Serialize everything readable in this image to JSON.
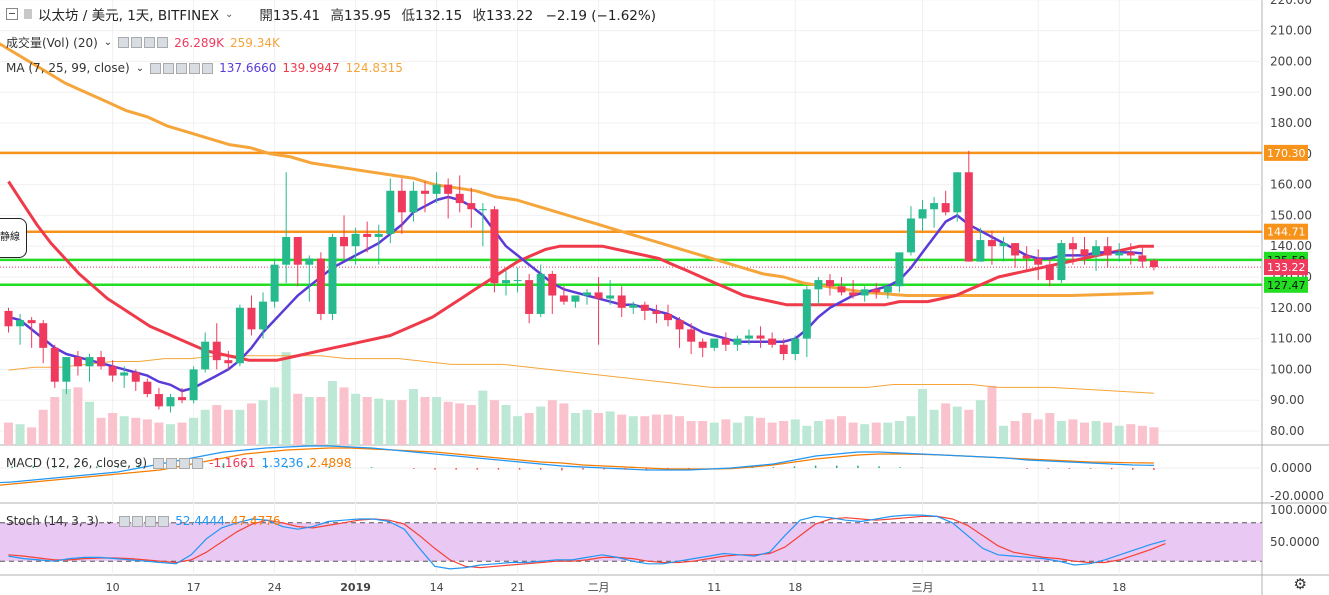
{
  "header": {
    "symbol": "以太坊 / 美元, 1天, BITFINEX",
    "open_label": "開",
    "open": "135.41",
    "high_label": "高",
    "high": "135.95",
    "low_label": "低",
    "low": "132.15",
    "close_label": "收",
    "close": "133.22",
    "change": "−2.19 (−1.62%)"
  },
  "volume_legend": {
    "name": "成交量(Vol) (20)",
    "v1": "26.289K",
    "v2": "259.34K"
  },
  "ma_legend": {
    "name": "MA (7, 25, 99, close)",
    "v1": "137.6660",
    "v2": "139.9947",
    "v3": "124.8315"
  },
  "macd_legend": {
    "name": "MACD (12, 26, close, 9)",
    "v1": "-1.1661",
    "v2": "1.3236",
    "v3": "2.4898"
  },
  "stoch_legend": {
    "name": "Stoch (14, 3, 3)",
    "v1": "52.4444",
    "v2": "47.4776"
  },
  "left_tag": "静線",
  "colors": {
    "up": "#26b98d",
    "down": "#ef3a5d",
    "ma7": "#5b3bd8",
    "ma25": "#ef3a4a",
    "ma99": "#f6a53b",
    "orange_line": "#f7931a",
    "green_line": "#22dd22",
    "stoch_fill": "#eac8f4"
  },
  "chart_data": {
    "type": "candlestick",
    "y_ticks": [
      80,
      90,
      100,
      110,
      120,
      130,
      140,
      150,
      160,
      170,
      180,
      190,
      200,
      210,
      220
    ],
    "y_tick_labels": [
      "80.00",
      "90.00",
      "100.00",
      "110.00",
      "120.00",
      "130.00",
      "140.00",
      "150.00",
      "160.00",
      "170.00",
      "180.00",
      "190.00",
      "200.00",
      "210.00",
      "220.00"
    ],
    "x_ticks": [
      {
        "day": 10,
        "label": "10"
      },
      {
        "day": 17,
        "label": "17"
      },
      {
        "day": 24,
        "label": "24"
      },
      {
        "day": 31,
        "label": "2019"
      },
      {
        "day": 38,
        "label": "14"
      },
      {
        "day": 45,
        "label": "21"
      },
      {
        "day": 52,
        "label": "二月"
      },
      {
        "day": 62,
        "label": "11"
      },
      {
        "day": 69,
        "label": "18"
      },
      {
        "day": 80,
        "label": "三月"
      },
      {
        "day": 90,
        "label": "11"
      },
      {
        "day": 97,
        "label": "18"
      }
    ],
    "horizontal_lines": [
      {
        "value": 170.3,
        "label": "170.30",
        "color": "orange"
      },
      {
        "value": 144.71,
        "label": "144.71",
        "color": "orange"
      },
      {
        "value": 135.58,
        "label": "135.58",
        "color": "green"
      },
      {
        "value": 127.47,
        "label": "127.47",
        "color": "green"
      }
    ],
    "last_price": {
      "value": 133.22,
      "label": "133.22"
    },
    "candles": [
      [
        119,
        120,
        112,
        114
      ],
      [
        114,
        118,
        108,
        116
      ],
      [
        116,
        117,
        107,
        115
      ],
      [
        115,
        116,
        102,
        107
      ],
      [
        107,
        108,
        94,
        96
      ],
      [
        96,
        104,
        92,
        104
      ],
      [
        104,
        106,
        98,
        101
      ],
      [
        101,
        105,
        96,
        104
      ],
      [
        104,
        106,
        100,
        101
      ],
      [
        101,
        103,
        96,
        98
      ],
      [
        98,
        101,
        94,
        99
      ],
      [
        99,
        100,
        93,
        96
      ],
      [
        96,
        97,
        91,
        92
      ],
      [
        92,
        94,
        87,
        88
      ],
      [
        88,
        92,
        86,
        91
      ],
      [
        91,
        94,
        89,
        90
      ],
      [
        90,
        101,
        89,
        100
      ],
      [
        100,
        112,
        99,
        109
      ],
      [
        109,
        115,
        100,
        103
      ],
      [
        103,
        106,
        100,
        102
      ],
      [
        102,
        121,
        101,
        120
      ],
      [
        120,
        124,
        111,
        113
      ],
      [
        113,
        125,
        110,
        122
      ],
      [
        122,
        136,
        120,
        134
      ],
      [
        134,
        164,
        128,
        143
      ],
      [
        143,
        143,
        127,
        134
      ],
      [
        134,
        137,
        122,
        136
      ],
      [
        136,
        138,
        116,
        118
      ],
      [
        118,
        144,
        116,
        143
      ],
      [
        143,
        150,
        136,
        140
      ],
      [
        140,
        146,
        134,
        144
      ],
      [
        144,
        148,
        138,
        143
      ],
      [
        143,
        147,
        134,
        144
      ],
      [
        144,
        162,
        141,
        158
      ],
      [
        158,
        162,
        144,
        151
      ],
      [
        151,
        161,
        148,
        158
      ],
      [
        158,
        161,
        151,
        157
      ],
      [
        157,
        164,
        154,
        160
      ],
      [
        160,
        162,
        149,
        157
      ],
      [
        157,
        163,
        151,
        154
      ],
      [
        154,
        159,
        146,
        152
      ],
      [
        152,
        154,
        140,
        152
      ],
      [
        152,
        153,
        125,
        128
      ],
      [
        128,
        132,
        124,
        129
      ],
      [
        129,
        133,
        125,
        129
      ],
      [
        129,
        131,
        115,
        118
      ],
      [
        118,
        134,
        117,
        131
      ],
      [
        131,
        132,
        118,
        124
      ],
      [
        124,
        127,
        121,
        122
      ],
      [
        122,
        124,
        120,
        124
      ],
      [
        124,
        126,
        121,
        125
      ],
      [
        125,
        130,
        108,
        123
      ],
      [
        123,
        129,
        121,
        124
      ],
      [
        124,
        127,
        117,
        120
      ],
      [
        120,
        122,
        118,
        121
      ],
      [
        121,
        122,
        116,
        119
      ],
      [
        119,
        121,
        115,
        118
      ],
      [
        118,
        121,
        114,
        116
      ],
      [
        116,
        117,
        107,
        113
      ],
      [
        113,
        115,
        105,
        109
      ],
      [
        109,
        110,
        104,
        107
      ],
      [
        107,
        110,
        106,
        110
      ],
      [
        110,
        112,
        106,
        108
      ],
      [
        108,
        111,
        106,
        110
      ],
      [
        110,
        113,
        108,
        111
      ],
      [
        111,
        114,
        107,
        110
      ],
      [
        110,
        112,
        107,
        108
      ],
      [
        108,
        110,
        103,
        105
      ],
      [
        105,
        111,
        103,
        110
      ],
      [
        110,
        127,
        104,
        126
      ],
      [
        126,
        130,
        121,
        129
      ],
      [
        129,
        131,
        124,
        127
      ],
      [
        127,
        130,
        124,
        125
      ],
      [
        125,
        129,
        123,
        124
      ],
      [
        124,
        127,
        122,
        126
      ],
      [
        126,
        128,
        123,
        125
      ],
      [
        125,
        127,
        123,
        127
      ],
      [
        127,
        138,
        125,
        138
      ],
      [
        138,
        153,
        137,
        149
      ],
      [
        149,
        155,
        145,
        152
      ],
      [
        152,
        156,
        146,
        154
      ],
      [
        154,
        158,
        150,
        151
      ],
      [
        151,
        164,
        148,
        164
      ],
      [
        164,
        171,
        135,
        135
      ],
      [
        135,
        146,
        135,
        142
      ],
      [
        142,
        145,
        134,
        140
      ],
      [
        140,
        143,
        135,
        141
      ],
      [
        141,
        141,
        133,
        137
      ],
      [
        137,
        140,
        132,
        136
      ],
      [
        136,
        139,
        129,
        134
      ],
      [
        134,
        136,
        127,
        129
      ],
      [
        129,
        142,
        128,
        141
      ],
      [
        141,
        143,
        134,
        139
      ],
      [
        139,
        143,
        134,
        137
      ],
      [
        137,
        142,
        132,
        140
      ],
      [
        140,
        143,
        133,
        137
      ],
      [
        137,
        141,
        135,
        138
      ],
      [
        138,
        141,
        134,
        137
      ],
      [
        137,
        140,
        133,
        135
      ],
      [
        135.41,
        135.95,
        132.15,
        133.22
      ]
    ],
    "ma7": [
      117,
      116,
      113,
      110,
      107,
      105,
      104,
      103,
      102,
      101,
      100,
      99,
      98,
      96,
      95,
      93,
      94,
      96,
      98,
      100,
      103,
      107,
      112,
      116,
      120,
      124,
      127,
      130,
      133,
      135,
      137,
      139,
      141,
      144,
      147,
      151,
      153,
      155,
      156,
      155,
      153,
      150,
      145,
      140,
      137,
      134,
      131,
      128,
      126,
      125,
      124,
      123,
      122,
      121,
      121,
      120,
      119,
      118,
      116,
      114,
      112,
      111,
      110,
      109,
      109,
      109,
      109,
      109,
      110,
      113,
      117,
      120,
      122,
      124,
      125,
      126,
      127,
      129,
      133,
      138,
      143,
      148,
      150,
      147,
      145,
      143,
      141,
      139,
      137,
      136,
      136,
      137,
      137,
      137,
      138,
      138,
      138,
      138,
      137.67
    ],
    "ma25": [
      161,
      154,
      147,
      141,
      136,
      131,
      127,
      123,
      120,
      117,
      114,
      112,
      110,
      108,
      106,
      105,
      104,
      103,
      103,
      103,
      104,
      105,
      106,
      107,
      108,
      109,
      110,
      111,
      113,
      115,
      117,
      120,
      123,
      126,
      129,
      132,
      135,
      137,
      139,
      140,
      140,
      140,
      140,
      139,
      138,
      137,
      136,
      134,
      132,
      130,
      128,
      126,
      124,
      123,
      122,
      121,
      121,
      121,
      121,
      121,
      121,
      121,
      121,
      122,
      122,
      122,
      123,
      124,
      126,
      128,
      130,
      131,
      132,
      133,
      134,
      135,
      136,
      137,
      138,
      139,
      140,
      139.99
    ],
    "ma99": [
      213,
      209,
      205,
      201,
      197,
      193,
      190,
      187,
      184,
      182,
      179,
      177,
      175,
      173,
      172,
      170,
      169,
      167,
      166,
      165,
      164,
      163,
      162,
      160,
      159,
      158,
      156,
      155,
      153,
      151,
      149,
      147,
      145,
      143,
      141,
      139,
      137,
      135,
      133,
      131,
      130,
      128,
      127,
      126,
      125,
      124.5,
      124,
      124,
      124,
      124,
      124,
      124,
      124,
      124,
      124,
      124.2,
      124.4,
      124.6,
      124.8315
    ],
    "volume": [
      14,
      13,
      11,
      22,
      30,
      35,
      36,
      27,
      17,
      20,
      18,
      17,
      16,
      14,
      13,
      14,
      17,
      22,
      25,
      22,
      22,
      26,
      28,
      36,
      58,
      32,
      30,
      30,
      40,
      36,
      32,
      30,
      29,
      28,
      28,
      35,
      30,
      30,
      27,
      26,
      25,
      34,
      28,
      25,
      18,
      20,
      24,
      28,
      26,
      20,
      22,
      20,
      21,
      19,
      18,
      18,
      19,
      19,
      18,
      15,
      15,
      14,
      16,
      14,
      18,
      17,
      14,
      15,
      16,
      12,
      15,
      16,
      18,
      14,
      13,
      14,
      14,
      15,
      18,
      35,
      22,
      26,
      24,
      22,
      28,
      37,
      12,
      15,
      20,
      16,
      20,
      15,
      16,
      14,
      15,
      14,
      12,
      13,
      12,
      11
    ],
    "volume_ma": [
      26,
      27,
      27,
      28,
      29,
      29,
      30,
      30,
      31,
      31,
      31,
      31,
      31,
      30,
      30,
      30,
      29,
      28,
      28,
      28,
      27,
      26,
      25,
      24,
      23,
      22,
      21,
      20,
      20,
      20,
      20,
      20,
      20,
      20,
      21,
      21,
      21,
      21,
      20,
      20,
      20,
      19.5,
      19,
      18.5,
      18
    ],
    "macd": [
      -8,
      -8,
      -8,
      -7.5,
      -7,
      -6,
      -5,
      -4,
      -3,
      -2,
      0,
      2,
      4,
      6,
      8,
      9,
      10,
      10.5,
      11,
      11,
      10.5,
      10,
      9,
      8,
      7,
      6,
      5,
      4,
      3,
      2,
      1,
      0.5,
      0,
      -0.5,
      -1,
      -1,
      -1,
      -0.5,
      0,
      1,
      2,
      4,
      6,
      7,
      8,
      8,
      7.5,
      7,
      6.5,
      6,
      5.5,
      5,
      4,
      3.5,
      3,
      2.5,
      2,
      1.5,
      1.3236
    ],
    "macd_signal": [
      -12,
      -11,
      -10,
      -9,
      -8,
      -7,
      -6,
      -5,
      -4,
      -3,
      -2,
      -1,
      1,
      3,
      5,
      7,
      8,
      9,
      9.5,
      10,
      10,
      9.5,
      9,
      8.5,
      8,
      7,
      6,
      5,
      4,
      3,
      2.5,
      1.5,
      1,
      0.5,
      0,
      -0.5,
      -0.5,
      -0.5,
      -0.3,
      0.5,
      1.5,
      3,
      4.5,
      5.5,
      6.5,
      7,
      7,
      6.8,
      6.5,
      6,
      5.5,
      5,
      4.5,
      4,
      3.5,
      3,
      2.8,
      2.6,
      2.4898
    ],
    "stoch_k": [
      28,
      24,
      22,
      20,
      24,
      26,
      26,
      24,
      22,
      20,
      18,
      16,
      30,
      55,
      72,
      80,
      86,
      84,
      74,
      70,
      74,
      82,
      84,
      86,
      86,
      82,
      70,
      40,
      12,
      8,
      10,
      14,
      16,
      18,
      18,
      20,
      22,
      22,
      26,
      30,
      26,
      20,
      16,
      16,
      20,
      24,
      28,
      32,
      30,
      28,
      34,
      60,
      84,
      90,
      88,
      84,
      82,
      86,
      90,
      92,
      92,
      90,
      80,
      60,
      40,
      30,
      28,
      26,
      24,
      20,
      14,
      16,
      22,
      30,
      38,
      46,
      52.44
    ],
    "stoch_d": [
      30,
      28,
      25,
      22,
      22,
      24,
      25,
      25,
      24,
      22,
      20,
      18,
      22,
      34,
      50,
      66,
      78,
      84,
      80,
      74,
      72,
      76,
      80,
      84,
      86,
      84,
      78,
      60,
      40,
      22,
      12,
      10,
      12,
      14,
      16,
      18,
      20,
      20,
      22,
      26,
      26,
      24,
      20,
      18,
      18,
      20,
      24,
      28,
      30,
      30,
      32,
      42,
      60,
      78,
      86,
      88,
      86,
      84,
      86,
      88,
      90,
      90,
      86,
      76,
      60,
      44,
      34,
      30,
      26,
      24,
      20,
      18,
      18,
      22,
      30,
      38,
      47.48
    ]
  }
}
